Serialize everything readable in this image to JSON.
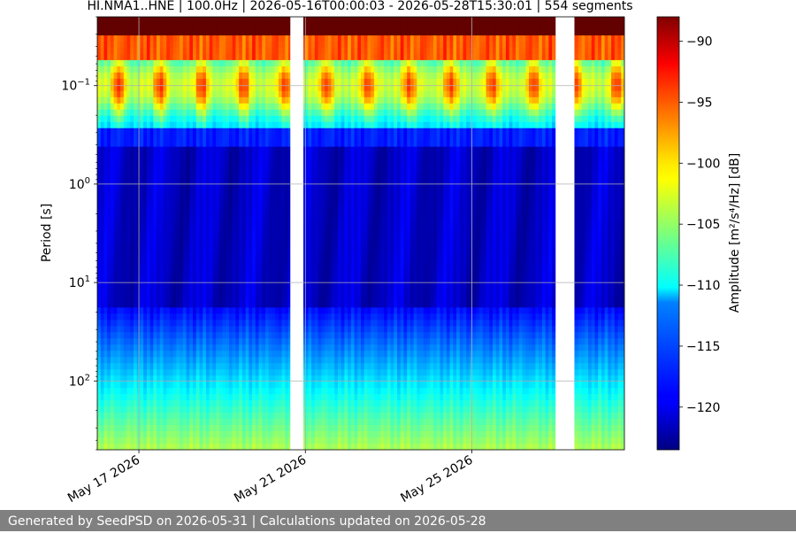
{
  "chart_data": {
    "type": "heatmap",
    "title": "HI.NMA1..HNE | 100.0Hz | 2026-05-16T00:00:03 - 2026-05-28T15:30:01 | 554 segments",
    "ylabel": "Period [s]",
    "colorbar_label": "Amplitude [m²/s⁴/Hz] [dB]",
    "x_range": [
      "2026-05-16",
      "2026-05-28T16:00"
    ],
    "x_tick_labels": [
      "May 17 2026",
      "May 21 2026",
      "May 25 2026"
    ],
    "x_tick_dates": [
      "2026-05-17",
      "2026-05-21",
      "2026-05-25"
    ],
    "y_scale": "log",
    "y_range": [
      0.02,
      500
    ],
    "y_tick_values": [
      0.1,
      1,
      10,
      100
    ],
    "y_tick_labels": [
      {
        "base": "10",
        "exp": "−1"
      },
      {
        "base": "10",
        "exp": "0"
      },
      {
        "base": "10",
        "exp": "1"
      },
      {
        "base": "10",
        "exp": "2"
      }
    ],
    "colorbar_range": [
      -123.5,
      -88
    ],
    "colorbar_ticks": [
      -90,
      -95,
      -100,
      -105,
      -110,
      -115,
      -120
    ],
    "colormap": "jet",
    "grid": true,
    "data_gaps": [
      {
        "start": "2026-05-20T15:20",
        "end": "2026-05-20T22:50"
      },
      {
        "start": "2026-05-27T00:20",
        "end": "2026-05-27T11:10"
      }
    ],
    "daily_high_noise_peaks_period_s": 0.1
  },
  "footer": "Generated by SeedPSD on 2026-05-31 | Calculations updated on 2026-05-28"
}
